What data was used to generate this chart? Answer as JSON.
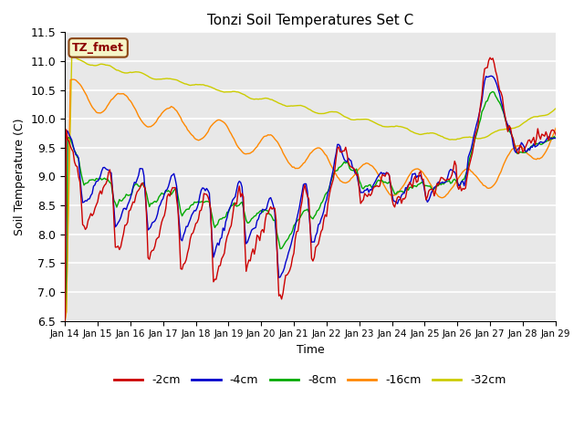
{
  "title": "Tonzi Soil Temperatures Set C",
  "xlabel": "Time",
  "ylabel": "Soil Temperature (C)",
  "ylim": [
    6.5,
    11.5
  ],
  "bg_color": "#e8e8e8",
  "grid_color": "white",
  "annotation_text": "TZ_fmet",
  "annotation_bg": "#f5f5c8",
  "annotation_border": "#8b4513",
  "annotation_text_color": "#8b0000",
  "colors": {
    "-2cm": "#cc0000",
    "-4cm": "#0000cc",
    "-8cm": "#00aa00",
    "-16cm": "#ff8800",
    "-32cm": "#cccc00"
  },
  "xtick_labels": [
    "Jan 14",
    "Jan 15",
    "Jan 16",
    "Jan 17",
    "Jan 18",
    "Jan 19",
    "Jan 20",
    "Jan 21",
    "Jan 22",
    "Jan 23",
    "Jan 24",
    "Jan 25",
    "Jan 26",
    "Jan 27",
    "Jan 28",
    "Jan 29"
  ],
  "xtick_positions": [
    0,
    24,
    48,
    72,
    96,
    120,
    144,
    168,
    192,
    216,
    240,
    264,
    288,
    312,
    336,
    360
  ]
}
